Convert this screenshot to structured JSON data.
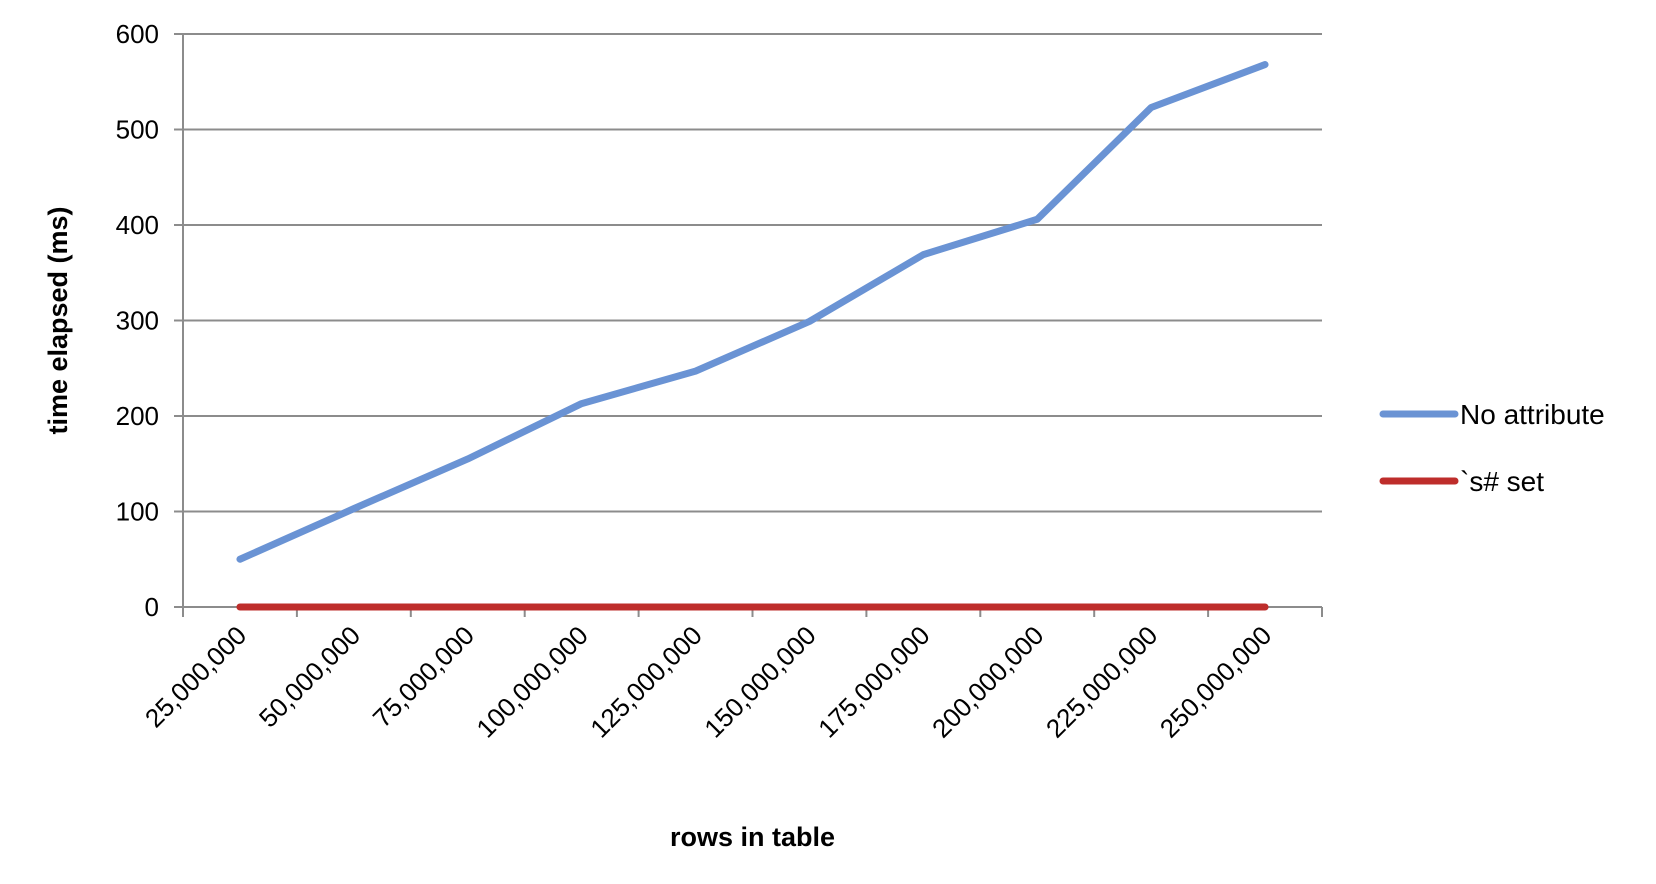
{
  "chart_data": {
    "type": "line",
    "title": "",
    "xlabel": "rows in table",
    "ylabel": "time elapsed (ms)",
    "categories": [
      "25,000,000",
      "50,000,000",
      "75,000,000",
      "100,000,000",
      "125,000,000",
      "150,000,000",
      "175,000,000",
      "200,000,000",
      "225,000,000",
      "250,000,000"
    ],
    "x": [
      25000000,
      50000000,
      75000000,
      100000000,
      125000000,
      150000000,
      175000000,
      200000000,
      225000000,
      250000000
    ],
    "ylim": [
      0,
      600
    ],
    "yticks": [
      0,
      100,
      200,
      300,
      400,
      500,
      600
    ],
    "grid": true,
    "legend": "right",
    "series": [
      {
        "name": "No attribute",
        "color": "#6A93D4",
        "values": [
          50,
          103,
          155,
          213,
          247,
          299,
          369,
          406,
          523,
          568
        ]
      },
      {
        "name": "`s# set",
        "color": "#BE2D2B",
        "values": [
          0,
          0,
          0,
          0,
          0,
          0,
          0,
          0,
          0,
          0
        ]
      }
    ]
  }
}
